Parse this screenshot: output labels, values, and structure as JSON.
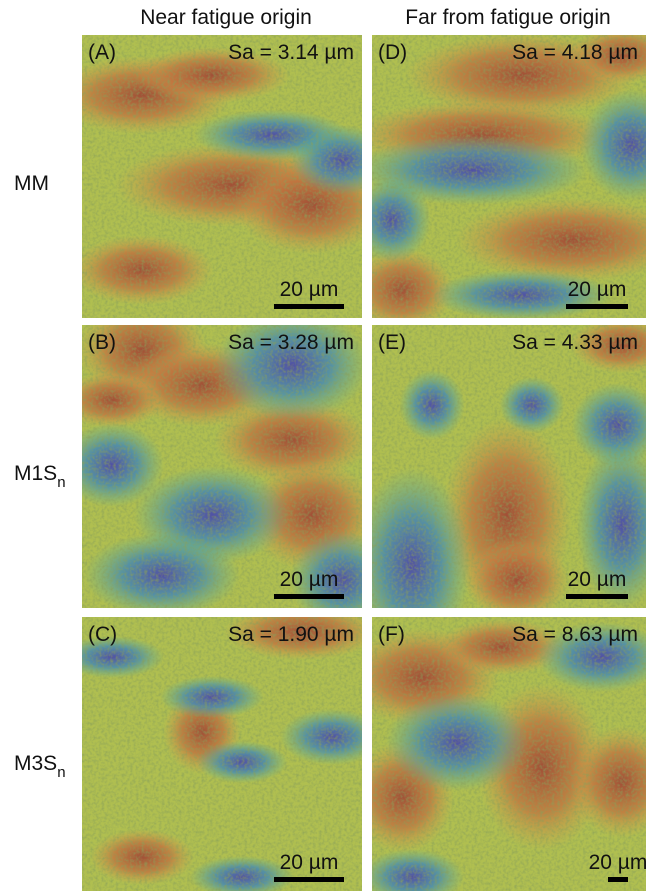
{
  "columns": [
    "Near fatigue origin",
    "Far from fatigue origin"
  ],
  "rows": [
    {
      "label": "MM"
    },
    {
      "label": "M1S",
      "subscript": "n"
    },
    {
      "label": "M3S",
      "subscript": "n"
    }
  ],
  "panels": [
    {
      "label": "(A)",
      "sa": "Sa = 3.14 µm",
      "scale": "20 µm"
    },
    {
      "label": "(D)",
      "sa": "Sa = 4.18 µm",
      "scale": "20 µm"
    },
    {
      "label": "(B)",
      "sa": "Sa = 3.28 µm",
      "scale": "20 µm"
    },
    {
      "label": "(E)",
      "sa": "Sa = 4.33 µm",
      "scale": "20 µm"
    },
    {
      "label": "(C)",
      "sa": "Sa = 1.90 µm",
      "scale": "20 µm"
    },
    {
      "label": "(F)",
      "sa": "Sa = 8.63 µm",
      "scale": "20 µm"
    }
  ]
}
